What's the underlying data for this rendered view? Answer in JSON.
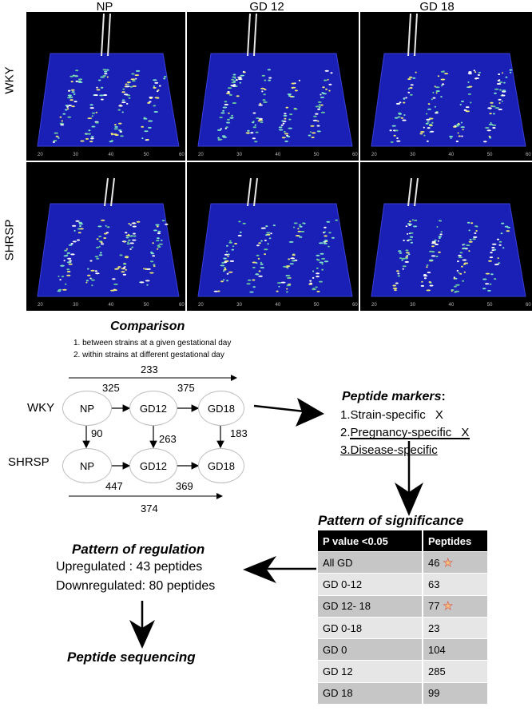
{
  "columns": [
    "NP",
    "GD 12",
    "GD 18"
  ],
  "rows": [
    "WKY",
    "SHRSP"
  ],
  "axis_ticks": [
    "20",
    "30",
    "40",
    "50",
    "60"
  ],
  "comparison": {
    "title": "Comparison",
    "items": [
      "1. between strains at a given gestational day",
      "2. within strains at different gestational day"
    ]
  },
  "flow": {
    "top_span": "233",
    "bottom_span": "374",
    "wky_label": "WKY",
    "shrsp_label": "SHRSP",
    "nodes": {
      "np": "NP",
      "gd12": "GD12",
      "gd18": "GD18"
    },
    "edges": {
      "wky_np_gd12": "325",
      "wky_gd12_gd18": "375",
      "np_vertical": "90",
      "gd12_vertical": "263",
      "gd18_vertical": "183",
      "shrsp_np_gd12": "447",
      "shrsp_gd12_gd18": "369"
    }
  },
  "markers": {
    "title": "Peptide markers",
    "colon": ":",
    "items": [
      {
        "text": "1.Strain-specific",
        "mark": "X"
      },
      {
        "text": "2.Pregnancy-specific",
        "mark": "X"
      },
      {
        "text": "3.Disease-specific",
        "mark": ""
      }
    ]
  },
  "significance": {
    "title": "Pattern of significance",
    "headers": [
      "P value <0.05",
      "Peptides"
    ],
    "rows": [
      {
        "label": "All GD",
        "value": "46",
        "star": true
      },
      {
        "label": "GD 0-12",
        "value": "63",
        "star": false
      },
      {
        "label": "GD 12- 18",
        "value": "77",
        "star": true
      },
      {
        "label": "GD 0-18",
        "value": "23",
        "star": false
      },
      {
        "label": "GD 0",
        "value": "104",
        "star": false
      },
      {
        "label": "GD 12",
        "value": "285",
        "star": false
      },
      {
        "label": "GD 18",
        "value": "99",
        "star": false
      }
    ]
  },
  "regulation": {
    "title": "Pattern of regulation",
    "upregulated": "Upregulated : 43 peptides",
    "downregulated": "Downregulated:  80 peptides"
  },
  "sequencing": "Peptide sequencing",
  "colors": {
    "plot_bg": "#000000",
    "plane": "#1a1fb5",
    "grid_border": "#ffffff",
    "node_border": "#bdbdbd",
    "table_header": "#000000",
    "table_odd": "#c6c6c6",
    "table_even": "#e6e6e6"
  }
}
